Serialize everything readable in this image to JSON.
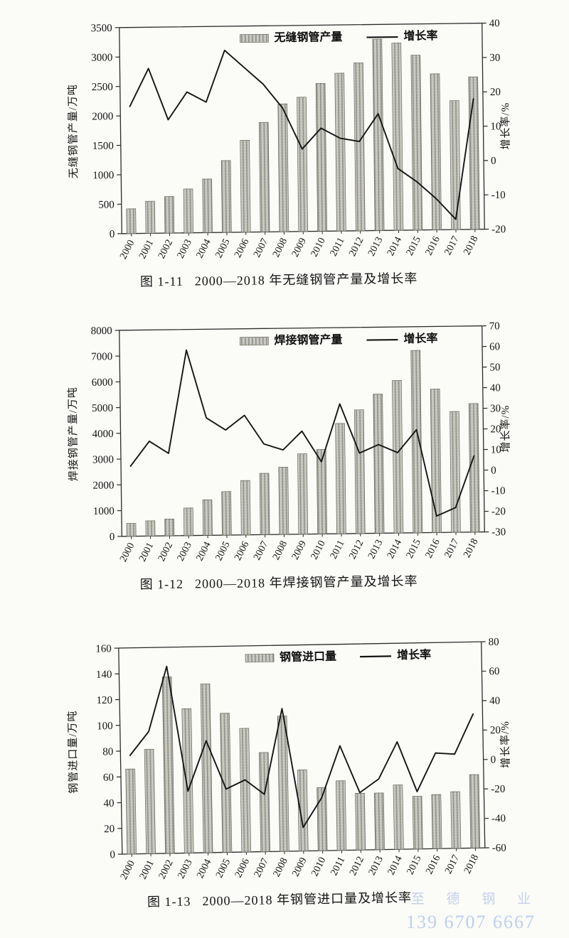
{
  "watermark": {
    "line1": "至 德 钢 业",
    "line2": "139 6707 6667",
    "color": "#a3b5e0"
  },
  "figures": [
    {
      "caption_label": "图 1-11",
      "caption_text": "2000—2018 年无缝钢管产量及增长率"
    },
    {
      "caption_label": "图 1-12",
      "caption_text": "2000—2018 年焊接钢管产量及增长率"
    },
    {
      "caption_label": "图 1-13",
      "caption_text": "2000—2018 年钢管进口量及增长率"
    }
  ],
  "chart_data": [
    {
      "type": "bar",
      "subtype": "bar+line-combo",
      "title": "2000—2018 年无缝钢管产量及增长率",
      "categories": [
        "2000",
        "2001",
        "2002",
        "2003",
        "2004",
        "2005",
        "2006",
        "2007",
        "2008",
        "2009",
        "2010",
        "2011",
        "2012",
        "2013",
        "2014",
        "2015",
        "2016",
        "2017",
        "2018"
      ],
      "series": [
        {
          "name": "无缝钢管产量",
          "type": "bar",
          "axis": "left",
          "values": [
            420,
            545,
            620,
            745,
            910,
            1220,
            1560,
            1860,
            2170,
            2280,
            2510,
            2680,
            2850,
            3250,
            3180,
            2970,
            2650,
            2190,
            2590
          ]
        },
        {
          "name": "增长率",
          "type": "line",
          "axis": "right",
          "values": [
            17,
            28,
            13,
            21,
            18,
            33,
            28,
            23,
            16,
            4,
            10,
            7,
            6,
            14,
            -2,
            -6,
            -11,
            -17,
            18
          ]
        }
      ],
      "ylabel_left": "无缝钢管产量/万吨",
      "ylabel_right": "增长率/%",
      "ylim_left": [
        0,
        3500
      ],
      "ytick_left": 500,
      "ylim_right": [
        -20,
        40
      ],
      "ytick_right": 10,
      "grid": false,
      "legend_position": "top-center-inside",
      "bar_color": "#c7c7c3",
      "bar_hatch_color": "#8d8d89",
      "line_color": "#151515"
    },
    {
      "type": "bar",
      "subtype": "bar+line-combo",
      "title": "2000—2018 年焊接钢管产量及增长率",
      "categories": [
        "2000",
        "2001",
        "2002",
        "2003",
        "2004",
        "2005",
        "2006",
        "2007",
        "2008",
        "2009",
        "2010",
        "2011",
        "2012",
        "2013",
        "2014",
        "2015",
        "2016",
        "2017",
        "2018"
      ],
      "series": [
        {
          "name": "焊接钢管产量",
          "type": "bar",
          "axis": "left",
          "values": [
            500,
            590,
            650,
            1070,
            1380,
            1690,
            2110,
            2380,
            2610,
            3120,
            3280,
            4280,
            4800,
            5400,
            5920,
            7080,
            5570,
            4690,
            4990
          ]
        },
        {
          "name": "增长率",
          "type": "line",
          "axis": "right",
          "values": [
            4,
            16,
            10,
            60,
            27,
            21,
            28,
            14,
            11,
            20,
            5,
            33,
            9,
            13,
            9,
            20,
            -22,
            -18,
            7
          ]
        }
      ],
      "ylabel_left": "焊接钢管产量/万吨",
      "ylabel_right": "增长率/%",
      "ylim_left": [
        0,
        8000
      ],
      "ytick_left": 1000,
      "ylim_right": [
        -30,
        70
      ],
      "ytick_right": 10,
      "grid": false,
      "legend_position": "top-center-inside",
      "bar_color": "#c7c7c3",
      "bar_hatch_color": "#8d8d89",
      "line_color": "#151515"
    },
    {
      "type": "bar",
      "subtype": "bar+line-combo",
      "title": "2000—2018 年钢管进口量及增长率",
      "categories": [
        "2000",
        "2001",
        "2002",
        "2003",
        "2004",
        "2005",
        "2006",
        "2007",
        "2008",
        "2009",
        "2010",
        "2011",
        "2012",
        "2013",
        "2014",
        "2015",
        "2016",
        "2017",
        "2018"
      ],
      "series": [
        {
          "name": "钢管进口量",
          "type": "bar",
          "axis": "left",
          "values": [
            66,
            81,
            137,
            112,
            131,
            108,
            96,
            77,
            105,
            63,
            49,
            54,
            44,
            44,
            50,
            41,
            42,
            44,
            57
          ]
        },
        {
          "name": "增长率",
          "type": "line",
          "axis": "right",
          "values": [
            7,
            23,
            67,
            -18,
            16,
            -17,
            -11,
            -21,
            37,
            -44,
            -24,
            11,
            -21,
            -12,
            13,
            -21,
            5,
            4,
            31
          ]
        }
      ],
      "ylabel_left": "钢管进口量/万吨",
      "ylabel_right": "增长率/%",
      "ylim_left": [
        0,
        160
      ],
      "ytick_left": 20,
      "ylim_right": [
        -60,
        80
      ],
      "ytick_right": 20,
      "grid": false,
      "legend_position": "top-center-inside",
      "bar_color": "#c7c7c3",
      "bar_hatch_color": "#8d8d89",
      "line_color": "#151515"
    }
  ]
}
